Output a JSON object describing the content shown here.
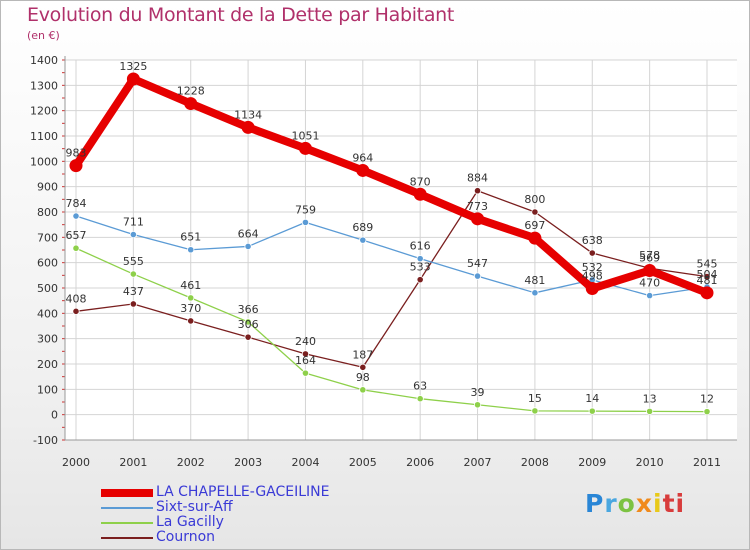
{
  "header": {
    "title": "Evolution du Montant de la Dette par Habitant",
    "subtitle": "(en €)"
  },
  "logo": {
    "text": "Proxiti",
    "letters": [
      "P",
      "r",
      "o",
      "x",
      "i",
      "ti"
    ]
  },
  "chart_data": {
    "type": "line",
    "x": [
      "2000",
      "2001",
      "2002",
      "2003",
      "2004",
      "2005",
      "2006",
      "2007",
      "2008",
      "2009",
      "2010",
      "2011"
    ],
    "ylim": [
      -100,
      1400
    ],
    "yticks": [
      "-100",
      "0",
      "100",
      "200",
      "300",
      "400",
      "500",
      "600",
      "700",
      "800",
      "900",
      "1000",
      "1100",
      "1200",
      "1300",
      "1400"
    ],
    "grid": true,
    "legend_position": "bottom-left",
    "series": [
      {
        "name": "LA CHAPELLE-GACEILINE",
        "color": "#e60000",
        "values": [
          983,
          1325,
          1228,
          1134,
          1051,
          964,
          870,
          773,
          697,
          498,
          569,
          481
        ],
        "labels": [
          "983",
          "1325",
          "1228",
          "1134",
          "1051",
          "964",
          "870",
          "773",
          "697",
          "498",
          "569",
          "481"
        ]
      },
      {
        "name": "Sixt-sur-Aff",
        "color": "#5b9bd5",
        "values": [
          784,
          711,
          651,
          664,
          759,
          689,
          616,
          547,
          481,
          532,
          470,
          504
        ],
        "labels": [
          "784",
          "711",
          "651",
          "664",
          "759",
          "689",
          "616",
          "547",
          "481",
          "532",
          "470",
          "504"
        ]
      },
      {
        "name": "La Gacilly",
        "color": "#8ed04a",
        "values": [
          657,
          555,
          461,
          366,
          164,
          98,
          63,
          39,
          15,
          14,
          13,
          12
        ],
        "labels": [
          "657",
          "555",
          "461",
          "366",
          "164",
          "98",
          "63",
          "39",
          "15",
          "14",
          "13",
          "12"
        ]
      },
      {
        "name": "Cournon",
        "color": "#7a1f1f",
        "values": [
          408,
          437,
          370,
          306,
          240,
          187,
          533,
          884,
          800,
          638,
          578,
          545
        ],
        "labels": [
          "408",
          "437",
          "370",
          "306",
          "240",
          "187",
          "533",
          "884",
          "800",
          "638",
          "578",
          "545"
        ]
      }
    ]
  }
}
